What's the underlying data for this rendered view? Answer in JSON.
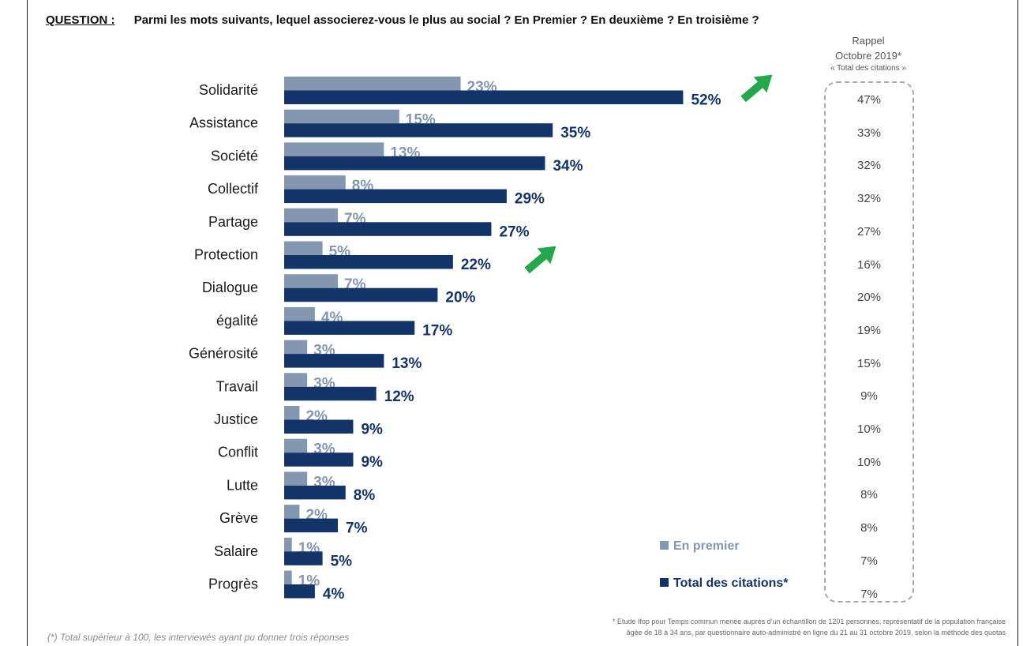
{
  "question": {
    "label": "QUESTION :",
    "text": "Parmi les mots suivants, lequel associerez-vous le plus au social ? En Premier ? En deuxième ? En troisième ?"
  },
  "chart_data": {
    "type": "bar",
    "orientation": "horizontal",
    "categories": [
      "Solidarité",
      "Assistance",
      "Société",
      "Collectif",
      "Partage",
      "Protection",
      "Dialogue",
      "égalité",
      "Générosité",
      "Travail",
      "Justice",
      "Conflit",
      "Lutte",
      "Grève",
      "Salaire",
      "Progrès"
    ],
    "series": [
      {
        "name": "En premier",
        "values": [
          23,
          15,
          13,
          8,
          7,
          5,
          7,
          4,
          3,
          3,
          2,
          3,
          3,
          2,
          1,
          1
        ],
        "labels": [
          "23%",
          "15%",
          "13%",
          "8%",
          "7%",
          "5%",
          "7%",
          "4%",
          "3%",
          "3%",
          "2%",
          "3%",
          "3%",
          "2%",
          "1%",
          "1%"
        ],
        "color": "#8497B0"
      },
      {
        "name": "Total des citations*",
        "values": [
          52,
          35,
          34,
          29,
          27,
          22,
          20,
          17,
          13,
          12,
          9,
          9,
          8,
          7,
          5,
          4
        ],
        "labels": [
          "52%",
          "35%",
          "34%",
          "29%",
          "27%",
          "22%",
          "20%",
          "17%",
          "13%",
          "12%",
          "9%",
          "9%",
          "8%",
          "7%",
          "5%",
          "4%"
        ],
        "color": "#123468"
      }
    ],
    "xlim": [
      0,
      60
    ],
    "grid": false,
    "legend_placement": "bottom-right",
    "highlight_arrows": [
      "Solidarité",
      "Protection"
    ],
    "arrow_color": "#22A94B"
  },
  "rappel": {
    "line1": "Rappel",
    "line2": "Octobre 2019*",
    "line3": "« Total des citations »",
    "values": [
      "47%",
      "33%",
      "32%",
      "32%",
      "27%",
      "16%",
      "20%",
      "19%",
      "15%",
      "9%",
      "10%",
      "10%",
      "8%",
      "8%",
      "7%",
      "7%"
    ]
  },
  "legend": {
    "first": "En premier",
    "total": "Total des citations*"
  },
  "footnotes": {
    "left": "(*) Total supérieur à 100, les interviewés ayant pu donner trois réponses",
    "right_line1": "* Etude Ifop pour Temps commun menée auprès d’un échantillon de 1201 personnes, représentatif de la population française",
    "right_line2": "âgée de 18 à 34 ans, par questionnaire auto-administré en ligne du 21 au 31 octobre 2019, selon la méthode des quotas"
  }
}
